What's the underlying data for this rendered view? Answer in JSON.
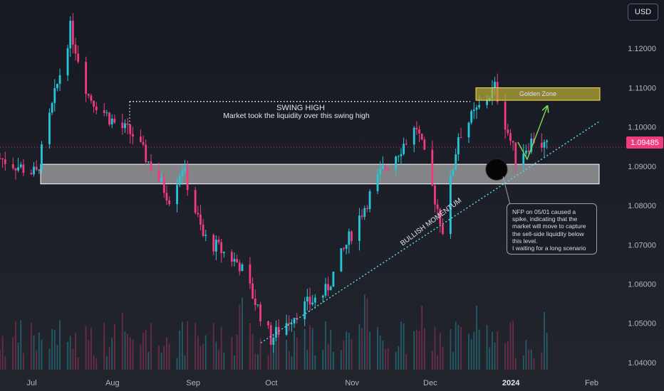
{
  "currency": "USD",
  "current_price_label": "1.09485",
  "annotations": {
    "swing_high_title": "SWING HIGH",
    "swing_high_text": "Market took the liquidity over this swing high",
    "golden_zone": "Golden Zone",
    "bullish_momentum": "BULLISH MOMENTUM",
    "note": "NFP on 05/01 caused a spike, indicating that the market will move to capture the sell-side liquidity below this level.\nI waiting for a long scenario"
  },
  "colors": {
    "background": "#1b1d26",
    "bull": "#26c6da",
    "bear": "#f23b7e",
    "zone_fill": "#d8d8d8",
    "golden_zone_fill": "#b5a83a",
    "trendline": "#5fd3e0",
    "arrow": "#7ed957"
  },
  "chart_data": {
    "type": "candlestick",
    "y_ticks": [
      "1.12000",
      "1.11000",
      "1.10000",
      "1.09000",
      "1.08000",
      "1.07000",
      "1.06000",
      "1.05000",
      "1.04000"
    ],
    "ylim": [
      1.035,
      1.13
    ],
    "x_ticks": [
      "Jul",
      "Aug",
      "Sep",
      "Oct",
      "Nov",
      "Dec",
      "2024",
      "Feb"
    ],
    "bold_x_tick": "2024",
    "xlim": [
      "2023-06-21",
      "2024-02-14"
    ],
    "current_price": 1.09485,
    "swing_high_level": 1.1065,
    "support_zone": [
      1.0855,
      1.0905
    ],
    "golden_zone": [
      1.1068,
      1.11
    ],
    "key_points": [
      {
        "date": "2023-06-21",
        "close": 1.092
      },
      {
        "date": "2023-07-05",
        "close": 1.088
      },
      {
        "date": "2023-07-18",
        "close": 1.125
      },
      {
        "date": "2023-07-25",
        "close": 1.108
      },
      {
        "date": "2023-08-04",
        "close": 1.101
      },
      {
        "date": "2023-08-11",
        "close": 1.098
      },
      {
        "date": "2023-08-25",
        "close": 1.082
      },
      {
        "date": "2023-08-30",
        "close": 1.09
      },
      {
        "date": "2023-09-07",
        "close": 1.072
      },
      {
        "date": "2023-09-21",
        "close": 1.065
      },
      {
        "date": "2023-10-03",
        "close": 1.046
      },
      {
        "date": "2023-10-13",
        "close": 1.053
      },
      {
        "date": "2023-10-24",
        "close": 1.058
      },
      {
        "date": "2023-11-03",
        "close": 1.073
      },
      {
        "date": "2023-11-14",
        "close": 1.088
      },
      {
        "date": "2023-11-28",
        "close": 1.1
      },
      {
        "date": "2023-12-08",
        "close": 1.074
      },
      {
        "date": "2023-12-14",
        "close": 1.098
      },
      {
        "date": "2023-12-28",
        "close": 1.11
      },
      {
        "date": "2024-01-05",
        "close": 1.092
      },
      {
        "date": "2024-01-12",
        "close": 1.097
      },
      {
        "date": "2024-01-17",
        "close": 1.0948
      }
    ]
  }
}
